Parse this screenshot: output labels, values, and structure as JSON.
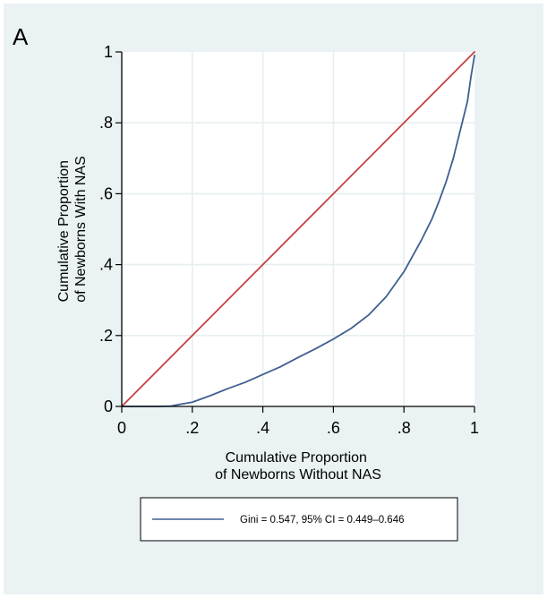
{
  "panel_label": "A",
  "colors": {
    "background": "#eaf2f3",
    "plot_area": "#ffffff",
    "grid": "#e6eef0",
    "equality_line": "#c4413f",
    "lorenz_curve": "#3e5f8f",
    "axis": "#000000"
  },
  "chart_data": {
    "type": "line",
    "title": "",
    "xlabel": [
      "Cumulative Proportion",
      "of Newborns Without NAS"
    ],
    "ylabel": [
      "Cumulative Proportion",
      "of Newborns With NAS"
    ],
    "xlim": [
      0,
      1
    ],
    "ylim": [
      0,
      1
    ],
    "x_ticks": [
      0,
      0.2,
      0.4,
      0.6,
      0.8,
      1
    ],
    "x_tick_labels": [
      "0",
      ".2",
      ".4",
      ".6",
      ".8",
      "1"
    ],
    "y_ticks": [
      0,
      0.2,
      0.4,
      0.6,
      0.8,
      1
    ],
    "y_tick_labels": [
      "0",
      ".2",
      ".4",
      ".6",
      ".8",
      "1"
    ],
    "grid": true,
    "legend_position": "bottom",
    "series": [
      {
        "name": "",
        "role": "line-of-equality",
        "x": [
          0,
          1
        ],
        "y": [
          0,
          1
        ]
      },
      {
        "name": "Gini = 0.547, 95% CI = 0.449–0.646",
        "role": "lorenz-curve",
        "x": [
          0,
          0.05,
          0.1,
          0.14,
          0.16,
          0.2,
          0.25,
          0.3,
          0.35,
          0.4,
          0.45,
          0.5,
          0.55,
          0.6,
          0.65,
          0.7,
          0.75,
          0.8,
          0.85,
          0.88,
          0.9,
          0.92,
          0.94,
          0.96,
          0.98,
          0.99,
          1.0
        ],
        "y": [
          0,
          0,
          0,
          0.001,
          0.005,
          0.012,
          0.03,
          0.05,
          0.068,
          0.09,
          0.112,
          0.138,
          0.163,
          0.19,
          0.22,
          0.258,
          0.31,
          0.38,
          0.47,
          0.53,
          0.58,
          0.635,
          0.7,
          0.78,
          0.86,
          0.93,
          0.99
        ]
      }
    ]
  }
}
